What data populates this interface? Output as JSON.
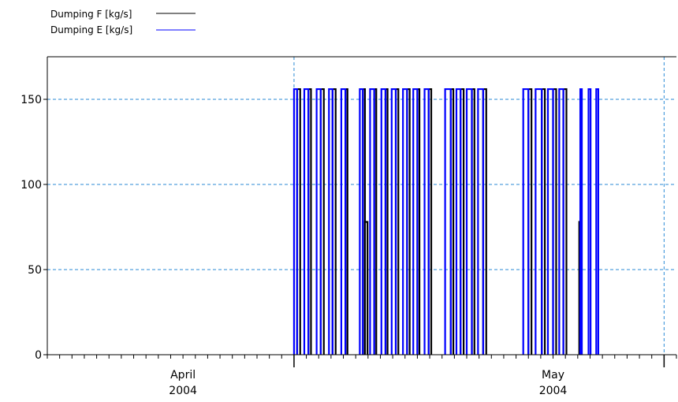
{
  "chart_data": {
    "type": "line",
    "xlabel": "",
    "ylabel": "",
    "x_range": [
      "2004-03-21",
      "2004-05-11"
    ],
    "ylim": [
      0,
      175
    ],
    "y_ticks": [
      0,
      50,
      100,
      150
    ],
    "x_major_ticks": [
      {
        "date": "2004-04-01",
        "label": "April",
        "sublabel": "2004"
      },
      {
        "date": "2004-05-01",
        "label": "May",
        "sublabel": "2004"
      }
    ],
    "x_gridlines": [
      "2004-04-10",
      "2004-05-10"
    ],
    "grid": true,
    "legend_position": "top-left",
    "series": [
      {
        "name": "Dumping F [kg/s]",
        "color": "#000000",
        "pulses": [
          [
            "2004-04-10 06:00",
            "2004-04-10 12:00",
            156
          ],
          [
            "2004-04-11 04:00",
            "2004-04-11 09:00",
            156
          ],
          [
            "2004-04-12 04:00",
            "2004-04-12 10:00",
            156
          ],
          [
            "2004-04-13 03:00",
            "2004-04-13 09:00",
            156
          ],
          [
            "2004-04-14 04:00",
            "2004-04-14 08:00",
            156
          ],
          [
            "2004-04-15 14:00",
            "2004-04-15 18:00",
            156
          ],
          [
            "2004-04-15 18:00",
            "2004-04-15 23:00",
            78
          ],
          [
            "2004-04-16 12:00",
            "2004-04-16 16:00",
            156
          ],
          [
            "2004-04-17 10:00",
            "2004-04-17 14:00",
            156
          ],
          [
            "2004-04-18 06:00",
            "2004-04-18 11:00",
            156
          ],
          [
            "2004-04-19 04:00",
            "2004-04-19 09:00",
            156
          ],
          [
            "2004-04-20 00:00",
            "2004-04-20 04:00",
            156
          ],
          [
            "2004-04-20 22:00",
            "2004-04-21 03:00",
            156
          ],
          [
            "2004-04-22 17:00",
            "2004-04-22 22:00",
            156
          ],
          [
            "2004-04-23 12:00",
            "2004-04-23 18:00",
            156
          ],
          [
            "2004-04-24 10:00",
            "2004-04-24 15:00",
            156
          ],
          [
            "2004-04-25 08:00",
            "2004-04-25 14:00",
            156
          ],
          [
            "2004-04-29 00:00",
            "2004-04-29 06:00",
            156
          ],
          [
            "2004-04-30 02:00",
            "2004-04-30 08:00",
            156
          ],
          [
            "2004-05-01 00:00",
            "2004-05-01 06:00",
            156
          ],
          [
            "2004-05-01 20:00",
            "2004-05-02 02:00",
            156
          ],
          [
            "2004-05-03 03:00",
            "2004-05-03 06:00",
            78
          ]
        ]
      },
      {
        "name": "Dumping E [kg/s]",
        "color": "#0000ff",
        "pulses": [
          [
            "2004-04-10 00:00",
            "2004-04-10 06:00",
            156
          ],
          [
            "2004-04-10 20:00",
            "2004-04-11 04:00",
            156
          ],
          [
            "2004-04-11 20:00",
            "2004-04-12 04:00",
            156
          ],
          [
            "2004-04-12 20:00",
            "2004-04-13 03:00",
            156
          ],
          [
            "2004-04-13 20:00",
            "2004-04-14 04:00",
            156
          ],
          [
            "2004-04-15 08:00",
            "2004-04-15 14:00",
            156
          ],
          [
            "2004-04-16 04:00",
            "2004-04-16 12:00",
            156
          ],
          [
            "2004-04-17 02:00",
            "2004-04-17 10:00",
            156
          ],
          [
            "2004-04-17 22:00",
            "2004-04-18 06:00",
            156
          ],
          [
            "2004-04-18 20:00",
            "2004-04-19 04:00",
            156
          ],
          [
            "2004-04-19 16:00",
            "2004-04-20 00:00",
            156
          ],
          [
            "2004-04-20 14:00",
            "2004-04-20 22:00",
            156
          ],
          [
            "2004-04-22 06:00",
            "2004-04-22 17:00",
            156
          ],
          [
            "2004-04-23 04:00",
            "2004-04-23 12:00",
            156
          ],
          [
            "2004-04-24 00:00",
            "2004-04-24 10:00",
            156
          ],
          [
            "2004-04-24 22:00",
            "2004-04-25 08:00",
            156
          ],
          [
            "2004-04-28 14:00",
            "2004-04-29 00:00",
            156
          ],
          [
            "2004-04-29 14:00",
            "2004-04-30 02:00",
            156
          ],
          [
            "2004-04-30 14:00",
            "2004-05-01 00:00",
            156
          ],
          [
            "2004-05-01 12:00",
            "2004-05-01 20:00",
            156
          ],
          [
            "2004-05-03 05:00",
            "2004-05-03 08:00",
            156
          ],
          [
            "2004-05-03 21:00",
            "2004-05-04 01:00",
            156
          ],
          [
            "2004-05-04 12:00",
            "2004-05-04 16:00",
            156
          ]
        ]
      }
    ]
  }
}
